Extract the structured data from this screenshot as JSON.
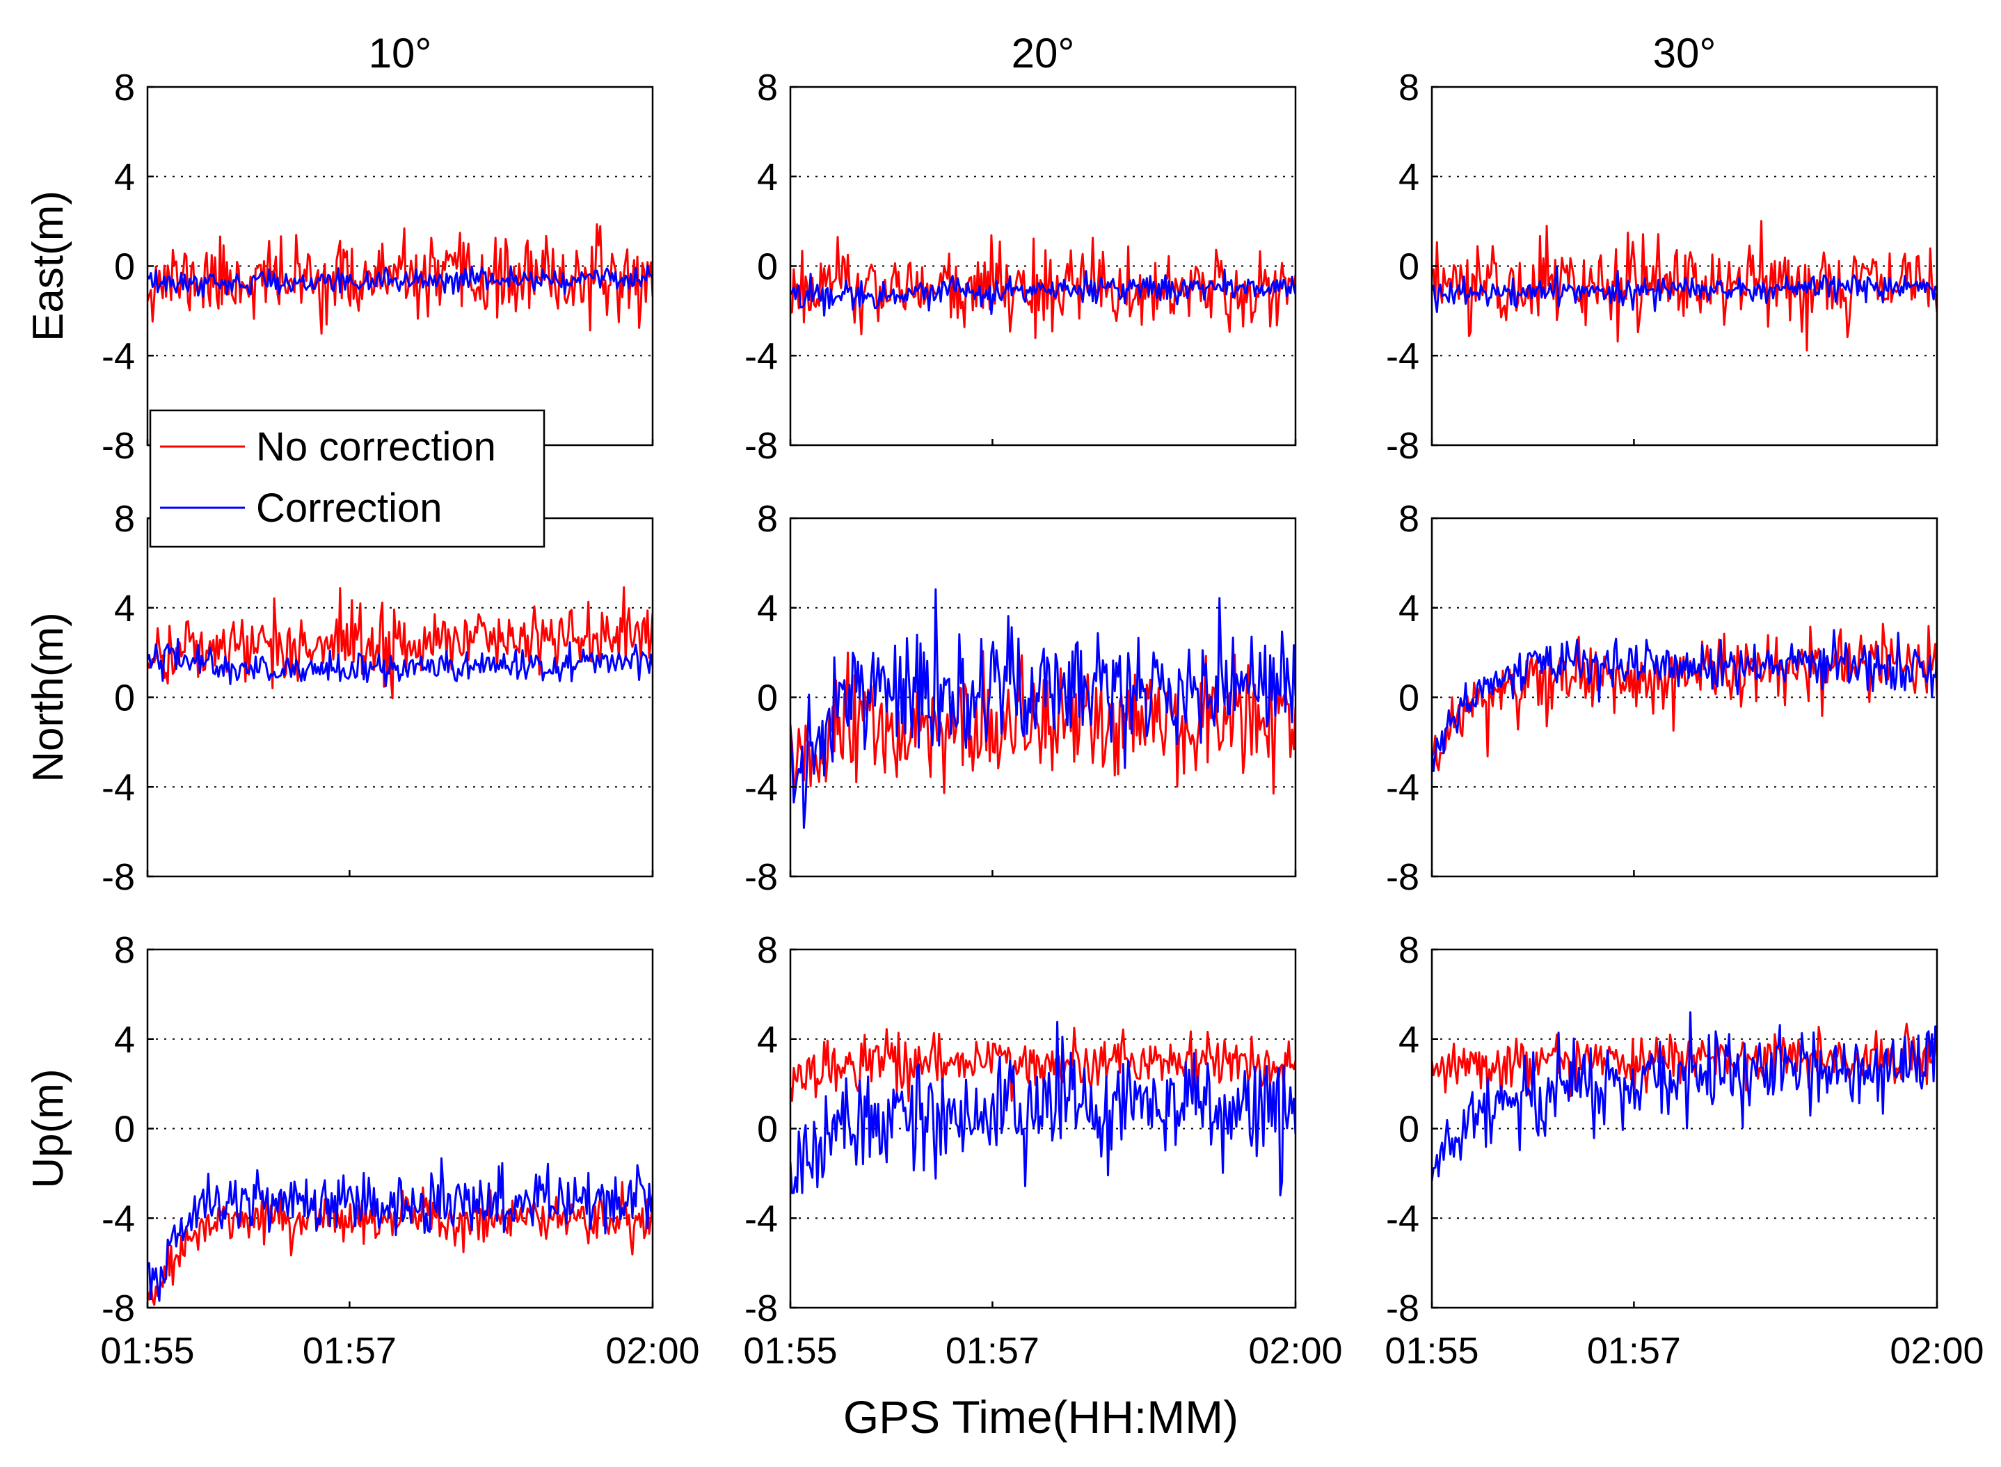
{
  "colors": {
    "no_correction": "#ff0000",
    "correction": "#0000ff",
    "grid": "#000000",
    "axes": "#000000"
  },
  "figure": {
    "xlabel": "GPS Time(HH:MM)"
  },
  "legend": {
    "entries": [
      {
        "label": "No correction",
        "color": "#ff0000"
      },
      {
        "label": "Correction",
        "color": "#0000ff"
      }
    ],
    "location": "between top-left and middle-left panels"
  },
  "chart_data": {
    "type": "line",
    "layout": "3x3 small multiples",
    "columns": [
      "10°",
      "20°",
      "30°"
    ],
    "rows": [
      "East(m)",
      "North(m)",
      "Up(m)"
    ],
    "xlabel": "GPS Time(HH:MM)",
    "xlim": [
      0,
      5
    ],
    "x_units": "minutes after 01:55",
    "x_ticks": [
      0,
      2,
      5
    ],
    "x_tick_labels": [
      "01:55",
      "01:57",
      "02:00"
    ],
    "ylim": [
      -8,
      8
    ],
    "y_ticks": [
      8,
      4,
      0,
      -4,
      -8
    ],
    "y_tick_labels": [
      "8",
      "4",
      "0",
      "-4",
      "-8"
    ],
    "grid": "dotted horizontal at y = 4, 0, -4",
    "samples_per_series": 300,
    "panels": [
      {
        "row": "East(m)",
        "col": "10°",
        "series": [
          {
            "name": "No correction",
            "trend": [
              [
                0,
                -0.6
              ],
              [
                5,
                -0.6
              ]
            ],
            "noise_sd": 0.85,
            "seed": 11
          },
          {
            "name": "Correction",
            "trend": [
              [
                0,
                -0.8
              ],
              [
                5,
                -0.5
              ]
            ],
            "noise_sd": 0.25,
            "seed": 12
          }
        ]
      },
      {
        "row": "East(m)",
        "col": "20°",
        "series": [
          {
            "name": "No correction",
            "trend": [
              [
                0,
                -1.0
              ],
              [
                5,
                -1.0
              ]
            ],
            "noise_sd": 0.9,
            "seed": 21
          },
          {
            "name": "Correction",
            "trend": [
              [
                0,
                -1.3
              ],
              [
                5,
                -0.9
              ]
            ],
            "noise_sd": 0.3,
            "seed": 22
          }
        ]
      },
      {
        "row": "East(m)",
        "col": "30°",
        "series": [
          {
            "name": "No correction",
            "trend": [
              [
                0,
                -0.8
              ],
              [
                5,
                -0.8
              ]
            ],
            "noise_sd": 0.9,
            "seed": 31
          },
          {
            "name": "Correction",
            "trend": [
              [
                0,
                -1.2
              ],
              [
                5,
                -0.9
              ]
            ],
            "noise_sd": 0.3,
            "seed": 32
          }
        ]
      },
      {
        "row": "North(m)",
        "col": "10°",
        "series": [
          {
            "name": "No correction",
            "trend": [
              [
                0,
                2.0
              ],
              [
                1,
                2.3
              ],
              [
                5,
                2.8
              ]
            ],
            "noise_sd": 0.75,
            "seed": 41
          },
          {
            "name": "Correction",
            "trend": [
              [
                0,
                2.0
              ],
              [
                1,
                1.2
              ],
              [
                3,
                1.3
              ],
              [
                5,
                1.7
              ]
            ],
            "noise_sd": 0.35,
            "seed": 42
          }
        ]
      },
      {
        "row": "North(m)",
        "col": "20°",
        "series": [
          {
            "name": "No correction",
            "trend": [
              [
                0,
                -3.5
              ],
              [
                0.3,
                -2.5
              ],
              [
                0.5,
                -1.5
              ],
              [
                5,
                -1.0
              ]
            ],
            "noise_sd": 1.2,
            "seed": 51
          },
          {
            "name": "Correction",
            "trend": [
              [
                0,
                -3.5
              ],
              [
                0.3,
                -1.5
              ],
              [
                0.5,
                0.5
              ],
              [
                5,
                0.5
              ]
            ],
            "noise_sd": 1.3,
            "seed": 52
          }
        ]
      },
      {
        "row": "North(m)",
        "col": "30°",
        "series": [
          {
            "name": "No correction",
            "trend": [
              [
                0,
                -2.5
              ],
              [
                0.5,
                0.0
              ],
              [
                1,
                0.8
              ],
              [
                5,
                1.4
              ]
            ],
            "noise_sd": 0.8,
            "seed": 61
          },
          {
            "name": "Correction",
            "trend": [
              [
                0,
                -2.5
              ],
              [
                0.5,
                0.5
              ],
              [
                1,
                1.5
              ],
              [
                5,
                1.4
              ]
            ],
            "noise_sd": 0.55,
            "seed": 62
          }
        ]
      },
      {
        "row": "Up(m)",
        "col": "10°",
        "series": [
          {
            "name": "No correction",
            "trend": [
              [
                0,
                -7.5
              ],
              [
                0.5,
                -4.5
              ],
              [
                1,
                -4.0
              ],
              [
                5,
                -4.0
              ]
            ],
            "noise_sd": 0.55,
            "seed": 71
          },
          {
            "name": "Correction",
            "trend": [
              [
                0,
                -7.0
              ],
              [
                0.5,
                -3.5
              ],
              [
                1,
                -3.5
              ],
              [
                5,
                -3.0
              ]
            ],
            "noise_sd": 0.75,
            "seed": 72
          }
        ]
      },
      {
        "row": "Up(m)",
        "col": "20°",
        "series": [
          {
            "name": "No correction",
            "trend": [
              [
                0,
                2.0
              ],
              [
                0.5,
                3.0
              ],
              [
                5,
                3.0
              ]
            ],
            "noise_sd": 0.6,
            "seed": 81
          },
          {
            "name": "Correction",
            "trend": [
              [
                0,
                -2.0
              ],
              [
                0.6,
                0.5
              ],
              [
                5,
                1.0
              ]
            ],
            "noise_sd": 1.3,
            "seed": 82
          }
        ]
      },
      {
        "row": "Up(m)",
        "col": "30°",
        "series": [
          {
            "name": "No correction",
            "trend": [
              [
                0,
                2.5
              ],
              [
                1,
                3.0
              ],
              [
                5,
                3.3
              ]
            ],
            "noise_sd": 0.6,
            "seed": 91
          },
          {
            "name": "Correction",
            "trend": [
              [
                0,
                -1.5
              ],
              [
                0.7,
                1.5
              ],
              [
                2,
                2.3
              ],
              [
                5,
                3.0
              ]
            ],
            "noise_sd": 0.9,
            "seed": 92
          }
        ]
      }
    ]
  }
}
